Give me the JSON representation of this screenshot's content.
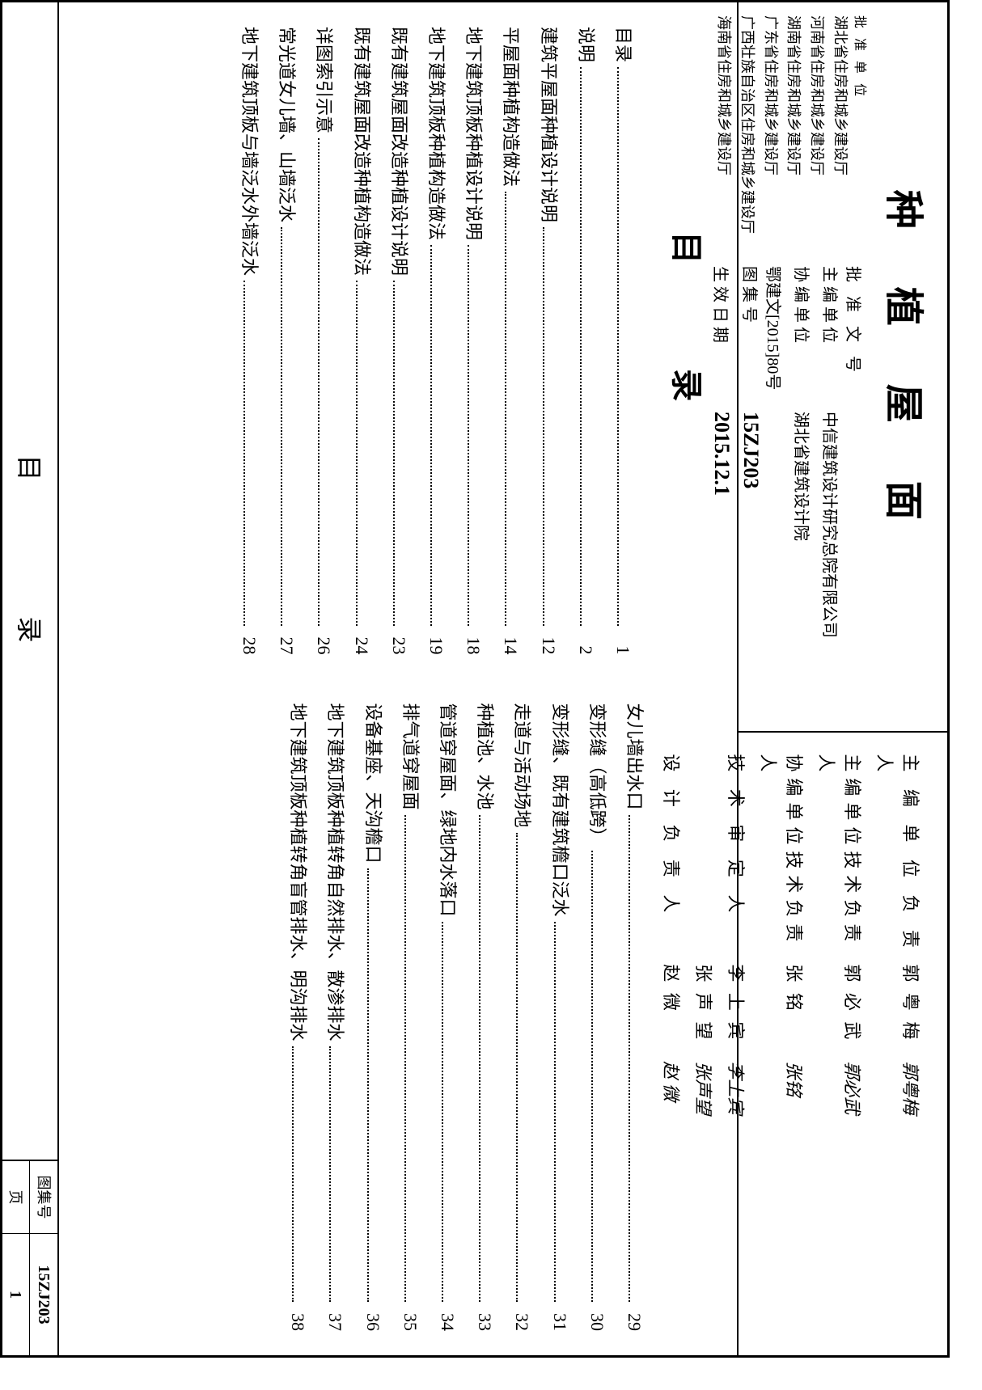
{
  "title": "种 植 屋 面",
  "header": {
    "approval_doc_label": "批 准 文 号",
    "approval_doc": "鄂建文[2015]80号",
    "approving_units_label": "批 准 单 位",
    "approving_units": [
      "湖北省住房和城乡建设厅",
      "河南省住房和城乡建设厅",
      "湖南省住房和城乡建设厅",
      "广东省住房和城乡建设厅",
      "广西壮族自治区住房和城乡建设厅",
      "海南省住房和城乡建设厅"
    ],
    "chief_editor_label": "主 编 单 位",
    "chief_editor": "中信建筑设计研究总院有限公司",
    "co_editor_label": "协 编 单 位",
    "co_editor": "湖北省建筑设计院",
    "atlas_no_label": "图 集 号",
    "atlas_no": "15ZJ203",
    "effective_date_label": "生 效 日 期",
    "effective_date": "2015.12.1"
  },
  "signatures": [
    {
      "role": "主 编 单 位 负 责 人",
      "name": "郭 粤 梅",
      "sign": "郭粤梅"
    },
    {
      "role": "主编单位技术负责人",
      "name": "郭 必 武",
      "sign": "郭必武"
    },
    {
      "role": "协编单位技术负责人",
      "name": "张    铭",
      "sign": "张铭"
    },
    {
      "role": "技 术 审 定 人",
      "name": "李 上 宾",
      "sign": "李上宾"
    },
    {
      "role": "",
      "name": "张 声 望",
      "sign": "张声望"
    },
    {
      "role": "设 计 负 责 人",
      "name": "赵    微",
      "sign": "赵 微"
    }
  ],
  "toc_heading": "目    录",
  "toc_left": [
    {
      "title": "目录",
      "page": "1"
    },
    {
      "title": "说明",
      "page": "2"
    },
    {
      "title": "建筑平屋面种植设计说明",
      "page": "12"
    },
    {
      "title": "平屋面种植构造做法",
      "page": "14"
    },
    {
      "title": "地下建筑顶板种植设计说明",
      "page": "18"
    },
    {
      "title": "地下建筑顶板种植构造做法",
      "page": "19"
    },
    {
      "title": "既有建筑屋面改造种植设计说明",
      "page": "23"
    },
    {
      "title": "既有建筑屋面改造种植构造做法",
      "page": "24"
    },
    {
      "title": "详图索引示意",
      "page": "26"
    },
    {
      "title": "常光道女儿墙、山墙泛水",
      "page": "27"
    },
    {
      "title": "地下建筑顶板与墙泛水外墙泛水",
      "page": "28"
    }
  ],
  "toc_right": [
    {
      "title": "女儿墙出水口",
      "page": "29"
    },
    {
      "title": "变形缝（高低跨）",
      "page": "30"
    },
    {
      "title": "变形缝、既有建筑檐口泛水",
      "page": "31"
    },
    {
      "title": "走道与活动场地",
      "page": "32"
    },
    {
      "title": "种植池、水池",
      "page": "33"
    },
    {
      "title": "管道穿屋面、绿地内水落口",
      "page": "34"
    },
    {
      "title": "排气道穿屋面",
      "page": "35"
    },
    {
      "title": "设备基座、天沟檐口",
      "page": "36"
    },
    {
      "title": "地下建筑顶板种植转角自然排水、散渗排水",
      "page": "37"
    },
    {
      "title": "地下建筑顶板种植转角盲管排水、明沟排水",
      "page": "38"
    }
  ],
  "footer": {
    "title": "目    录",
    "atlas_label": "图集号",
    "atlas_value": "15ZJ203",
    "page_label": "页",
    "page_value": "1"
  }
}
